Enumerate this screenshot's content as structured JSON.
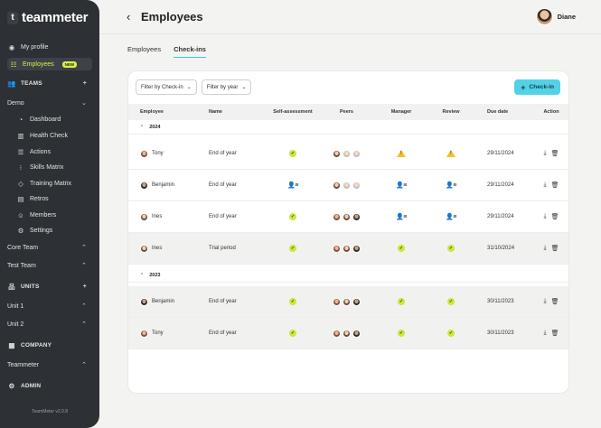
{
  "brand": {
    "logo_letter": "t",
    "name": "teammeter"
  },
  "sidebar": {
    "my_profile": "My profile",
    "employees": "Employees",
    "new_badge": "NEW",
    "teams_label": "TEAMS",
    "demo": "Demo",
    "demo_items": [
      "Dashboard",
      "Health Check",
      "Actions",
      "Skills Matrix",
      "Training Matrix",
      "Retros",
      "Members",
      "Settings"
    ],
    "core_team": "Core Team",
    "test_team": "Test Team",
    "units_label": "UNITS",
    "unit1": "Unit 1",
    "unit2": "Unit 2",
    "company_label": "COMPANY",
    "teammeter": "Teammeter",
    "admin_label": "ADMIN",
    "version": "TeamMeter v2.0.8"
  },
  "header": {
    "title": "Employees",
    "user_name": "Diane"
  },
  "tabs": [
    "Employees",
    "Check-ins"
  ],
  "filters": {
    "by_checkin": "Filter by Check-in",
    "by_year": "Filter by year",
    "checkin_button": "Check-in"
  },
  "table": {
    "columns": [
      "Employee",
      "Name",
      "Self-assessment",
      "Peers",
      "Manager",
      "Review",
      "Due date",
      "Action"
    ],
    "groups": [
      {
        "year": "2024",
        "rows": [
          {
            "employee": "Tony",
            "name": "End of year",
            "self": "done",
            "peers": "pending",
            "manager": "warning",
            "review": "warning",
            "due": "29/11/2024"
          },
          {
            "employee": "Benjamin",
            "name": "End of year",
            "self": "assigned",
            "peers": "pending",
            "manager": "assigned",
            "review": "assigned",
            "due": "29/11/2024"
          },
          {
            "employee": "Ines",
            "name": "End of year",
            "self": "done",
            "peers": "done",
            "manager": "assigned",
            "review": "assigned",
            "due": "29/11/2024"
          },
          {
            "employee": "Ines",
            "name": "Trial period",
            "self": "done",
            "peers": "done",
            "manager": "done",
            "review": "done",
            "due": "31/10/2024"
          }
        ]
      },
      {
        "year": "2023",
        "rows": [
          {
            "employee": "Benjamin",
            "name": "End of year",
            "self": "done",
            "peers": "done",
            "manager": "done",
            "review": "done",
            "due": "30/11/2023"
          },
          {
            "employee": "Tony",
            "name": "End of year",
            "self": "done",
            "peers": "done",
            "manager": "done",
            "review": "done",
            "due": "30/11/2023"
          }
        ]
      }
    ]
  },
  "colors": {
    "sidebar_bg": "#2d3035",
    "accent_lime": "#d9f24c",
    "accent_cyan": "#52d2e6",
    "check_green": "#c7ea3b",
    "warning_yellow": "#f4c02e"
  }
}
